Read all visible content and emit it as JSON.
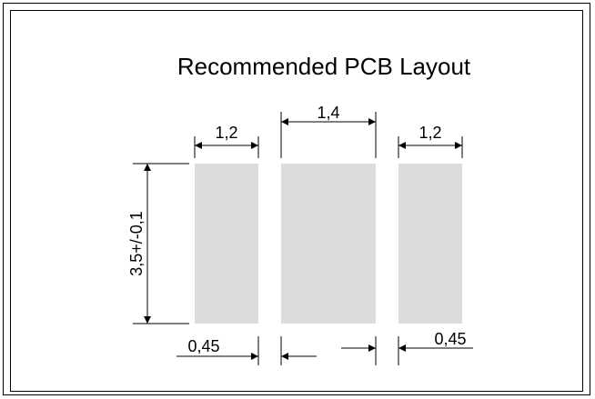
{
  "title": "Recommended PCB Layout",
  "dimensions": {
    "pad_left_width": "1,2",
    "pad_center_width": "1,4",
    "pad_right_width": "1,2",
    "pad_height": "3,5+/-0,1",
    "gap_left": "0,45",
    "gap_right": "0,45"
  },
  "colors": {
    "pad_fill": "#dcdcdc",
    "line": "#000000"
  }
}
